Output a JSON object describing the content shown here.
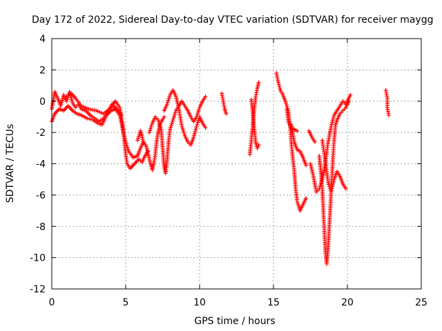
{
  "chart_data": {
    "type": "scatter",
    "title": "Day 172 of 2022, Sidereal Day-to-day VTEC variation (SDTVAR) for receiver maygg",
    "xlabel": "GPS time / hours",
    "ylabel": "SDTVAR / TECUs",
    "xlim": [
      0,
      25
    ],
    "ylim": [
      -12,
      4
    ],
    "xticks": [
      0,
      5,
      10,
      15,
      20,
      25
    ],
    "yticks": [
      -12,
      -10,
      -8,
      -6,
      -4,
      -2,
      0,
      2,
      4
    ],
    "grid": true,
    "marker": "plus",
    "color": "#ff0000",
    "series": [
      {
        "name": "SDTVAR",
        "tracks": [
          [
            [
              0.0,
              -0.5
            ],
            [
              0.2,
              0.6
            ],
            [
              0.4,
              0.2
            ],
            [
              0.6,
              -0.3
            ],
            [
              0.8,
              0.4
            ],
            [
              1.0,
              0.0
            ],
            [
              1.2,
              0.6
            ],
            [
              1.4,
              -0.1
            ],
            [
              1.6,
              -0.4
            ],
            [
              1.8,
              -0.2
            ],
            [
              2.0,
              -0.5
            ],
            [
              2.3,
              -0.6
            ],
            [
              2.6,
              -0.9
            ],
            [
              2.9,
              -1.1
            ],
            [
              3.2,
              -1.3
            ],
            [
              3.5,
              -1.1
            ],
            [
              3.8,
              -0.7
            ],
            [
              4.0,
              -0.3
            ],
            [
              4.3,
              0.0
            ],
            [
              4.6,
              -0.4
            ],
            [
              4.8,
              -1.5
            ],
            [
              4.9,
              -2.5
            ],
            [
              5.0,
              -3.4
            ],
            [
              5.1,
              -4.0
            ],
            [
              5.3,
              -4.3
            ],
            [
              5.6,
              -4.0
            ],
            [
              5.9,
              -3.7
            ],
            [
              6.1,
              -3.9
            ],
            [
              6.3,
              -3.5
            ],
            [
              6.5,
              -3.2
            ]
          ],
          [
            [
              0.0,
              -1.3
            ],
            [
              0.2,
              -0.8
            ],
            [
              0.5,
              -0.5
            ],
            [
              0.8,
              -0.6
            ],
            [
              1.1,
              -0.3
            ],
            [
              1.4,
              -0.6
            ],
            [
              1.7,
              -0.8
            ],
            [
              2.0,
              -0.9
            ],
            [
              2.4,
              -1.1
            ],
            [
              2.8,
              -1.2
            ],
            [
              3.1,
              -1.4
            ],
            [
              3.4,
              -1.5
            ],
            [
              3.7,
              -0.9
            ],
            [
              4.0,
              -0.6
            ],
            [
              4.3,
              -0.5
            ],
            [
              4.6,
              -0.9
            ],
            [
              4.8,
              -1.8
            ],
            [
              5.0,
              -2.6
            ],
            [
              5.2,
              -3.2
            ],
            [
              5.5,
              -3.6
            ],
            [
              5.8,
              -3.5
            ],
            [
              6.0,
              -3.0
            ],
            [
              6.2,
              -2.6
            ],
            [
              6.4,
              -2.9
            ],
            [
              6.6,
              -3.7
            ],
            [
              6.8,
              -4.4
            ],
            [
              6.9,
              -4.0
            ],
            [
              7.0,
              -3.4
            ],
            [
              7.1,
              -2.5
            ],
            [
              7.3,
              -1.5
            ],
            [
              7.6,
              -1.0
            ]
          ],
          [
            [
              1.0,
              0.3
            ],
            [
              1.3,
              0.5
            ],
            [
              1.6,
              0.2
            ],
            [
              2.0,
              -0.3
            ],
            [
              2.5,
              -0.5
            ],
            [
              3.0,
              -0.6
            ],
            [
              3.5,
              -0.8
            ],
            [
              3.9,
              -0.5
            ],
            [
              4.2,
              -0.3
            ],
            [
              4.5,
              -0.6
            ],
            [
              4.7,
              -0.9
            ]
          ],
          [
            [
              5.8,
              -2.5
            ],
            [
              6.0,
              -1.9
            ],
            [
              6.1,
              -2.2
            ],
            [
              6.2,
              -2.7
            ]
          ],
          [
            [
              6.6,
              -2.0
            ],
            [
              6.8,
              -1.4
            ],
            [
              7.0,
              -1.0
            ],
            [
              7.2,
              -1.2
            ],
            [
              7.4,
              -1.8
            ],
            [
              7.5,
              -3.0
            ],
            [
              7.6,
              -4.2
            ],
            [
              7.7,
              -4.6
            ],
            [
              7.8,
              -3.8
            ],
            [
              7.9,
              -2.6
            ],
            [
              8.0,
              -1.8
            ],
            [
              8.2,
              -1.2
            ],
            [
              8.4,
              -0.6
            ],
            [
              8.6,
              -0.3
            ],
            [
              8.8,
              0.0
            ],
            [
              9.0,
              -0.3
            ],
            [
              9.2,
              -0.6
            ],
            [
              9.4,
              -1.0
            ],
            [
              9.6,
              -1.3
            ],
            [
              9.8,
              -1.0
            ],
            [
              10.0,
              -0.4
            ],
            [
              10.2,
              0.0
            ],
            [
              10.4,
              0.3
            ]
          ],
          [
            [
              7.6,
              -0.6
            ],
            [
              7.8,
              -0.2
            ],
            [
              8.0,
              0.4
            ],
            [
              8.2,
              0.7
            ],
            [
              8.4,
              0.3
            ],
            [
              8.6,
              -0.5
            ],
            [
              8.8,
              -1.6
            ],
            [
              9.0,
              -2.2
            ],
            [
              9.2,
              -2.6
            ],
            [
              9.4,
              -2.8
            ],
            [
              9.6,
              -2.3
            ],
            [
              9.8,
              -1.6
            ],
            [
              10.0,
              -1.0
            ],
            [
              10.2,
              -1.4
            ],
            [
              10.4,
              -1.7
            ]
          ],
          [
            [
              11.5,
              0.5
            ],
            [
              11.6,
              0.0
            ],
            [
              11.7,
              -0.5
            ],
            [
              11.8,
              -0.8
            ]
          ],
          [
            [
              13.4,
              -3.4
            ],
            [
              13.5,
              -2.5
            ],
            [
              13.6,
              -1.5
            ],
            [
              13.7,
              -0.5
            ],
            [
              13.8,
              0.3
            ],
            [
              13.9,
              0.8
            ],
            [
              14.0,
              1.2
            ]
          ],
          [
            [
              13.5,
              0.1
            ],
            [
              13.6,
              -0.8
            ],
            [
              13.7,
              -1.8
            ],
            [
              13.8,
              -2.6
            ],
            [
              13.9,
              -3.0
            ],
            [
              14.0,
              -2.8
            ]
          ],
          [
            [
              15.2,
              1.8
            ],
            [
              15.3,
              1.3
            ],
            [
              15.5,
              0.6
            ],
            [
              15.6,
              0.5
            ],
            [
              15.8,
              0.0
            ],
            [
              16.0,
              -0.6
            ],
            [
              16.1,
              -1.3
            ],
            [
              16.2,
              -2.6
            ],
            [
              16.3,
              -3.6
            ],
            [
              16.4,
              -4.4
            ],
            [
              16.5,
              -5.6
            ],
            [
              16.6,
              -6.4
            ],
            [
              16.8,
              -7.0
            ],
            [
              17.0,
              -6.6
            ],
            [
              17.2,
              -6.2
            ]
          ],
          [
            [
              15.9,
              -0.5
            ],
            [
              16.0,
              -1.3
            ],
            [
              16.2,
              -1.7
            ],
            [
              16.4,
              -1.8
            ],
            [
              16.6,
              -1.9
            ]
          ],
          [
            [
              16.2,
              -1.5
            ],
            [
              16.4,
              -2.6
            ],
            [
              16.6,
              -3.1
            ],
            [
              16.8,
              -3.2
            ],
            [
              17.0,
              -3.6
            ],
            [
              17.2,
              -4.1
            ]
          ],
          [
            [
              17.4,
              -1.9
            ],
            [
              17.6,
              -2.3
            ],
            [
              17.8,
              -2.6
            ]
          ],
          [
            [
              17.5,
              -4.0
            ],
            [
              17.7,
              -4.8
            ],
            [
              17.9,
              -5.8
            ],
            [
              18.1,
              -5.6
            ],
            [
              18.3,
              -5.0
            ],
            [
              18.5,
              -4.0
            ],
            [
              18.7,
              -2.6
            ],
            [
              18.9,
              -1.6
            ],
            [
              19.1,
              -0.9
            ],
            [
              19.3,
              -0.6
            ],
            [
              19.5,
              -0.3
            ],
            [
              19.7,
              0.0
            ],
            [
              19.9,
              -0.2
            ],
            [
              20.1,
              0.2
            ],
            [
              20.2,
              0.4
            ]
          ],
          [
            [
              18.1,
              -3.5
            ],
            [
              18.2,
              -4.5
            ],
            [
              18.3,
              -5.6
            ],
            [
              18.4,
              -7.5
            ],
            [
              18.5,
              -9.5
            ],
            [
              18.6,
              -10.4
            ],
            [
              18.7,
              -9.3
            ],
            [
              18.8,
              -7.6
            ],
            [
              18.9,
              -5.8
            ],
            [
              19.0,
              -4.0
            ],
            [
              19.1,
              -2.5
            ],
            [
              19.2,
              -1.5
            ],
            [
              19.3,
              -1.2
            ],
            [
              19.5,
              -0.8
            ],
            [
              19.7,
              -0.6
            ],
            [
              19.9,
              -0.4
            ],
            [
              20.1,
              0.0
            ]
          ],
          [
            [
              18.3,
              -2.5
            ],
            [
              18.5,
              -3.8
            ],
            [
              18.7,
              -5.2
            ],
            [
              18.9,
              -5.8
            ],
            [
              19.1,
              -5.0
            ],
            [
              19.3,
              -4.5
            ],
            [
              19.5,
              -4.8
            ],
            [
              19.7,
              -5.3
            ],
            [
              19.9,
              -5.6
            ]
          ],
          [
            [
              22.6,
              0.7
            ],
            [
              22.7,
              0.2
            ],
            [
              22.7,
              -0.4
            ],
            [
              22.8,
              -0.9
            ]
          ]
        ]
      }
    ]
  }
}
